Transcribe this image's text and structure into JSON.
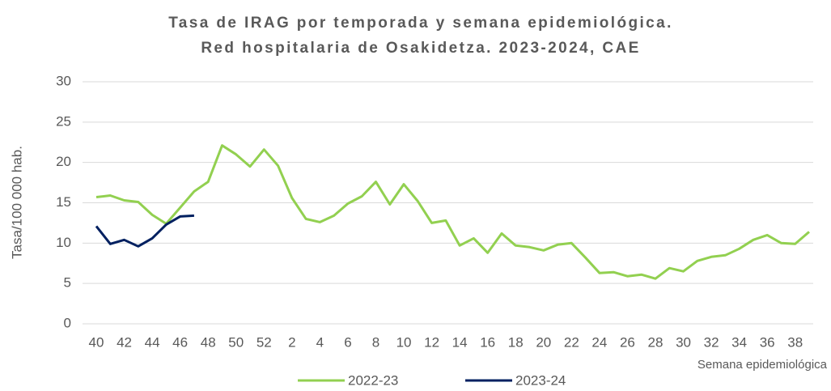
{
  "chart_data": {
    "type": "line",
    "title": [
      "Tasa de IRAG por temporada y semana epidemiológica.",
      "Red hospitalaria de Osakidetza. 2023-2024, CAE"
    ],
    "y_label": "Tasa/100 000 hab.",
    "x_label": "Semana epidemiológica",
    "categories": [
      "40",
      null,
      "42",
      null,
      "44",
      null,
      "46",
      null,
      "48",
      null,
      "50",
      null,
      "52",
      null,
      "2",
      null,
      "4",
      null,
      "6",
      null,
      "8",
      null,
      "10",
      null,
      "12",
      null,
      "14",
      null,
      "16",
      null,
      "18",
      null,
      "20",
      null,
      "22",
      null,
      "24",
      null,
      "26",
      null,
      "28",
      null,
      "30",
      null,
      "32",
      null,
      "34",
      null,
      "36",
      null,
      "38",
      null
    ],
    "series": [
      {
        "name": "2022-23",
        "color": "#92d050",
        "values": [
          15.7,
          15.9,
          15.3,
          15.1,
          13.5,
          12.4,
          14.4,
          16.4,
          17.6,
          22.1,
          21.0,
          19.5,
          21.6,
          19.6,
          15.6,
          13.0,
          12.6,
          13.4,
          14.9,
          15.8,
          17.6,
          14.8,
          17.3,
          15.2,
          12.5,
          12.8,
          9.7,
          10.6,
          8.8,
          11.2,
          9.7,
          9.5,
          9.1,
          9.8,
          10.0,
          8.2,
          6.3,
          6.4,
          5.9,
          6.1,
          5.6,
          6.9,
          6.5,
          7.8,
          8.3,
          8.5,
          9.3,
          10.4,
          11.0,
          10.0,
          9.9,
          11.4
        ]
      },
      {
        "name": "2023-24",
        "color": "#002060",
        "values": [
          12.1,
          9.9,
          10.4,
          9.6,
          10.6,
          12.3,
          13.3,
          13.4,
          null,
          null,
          null,
          null,
          null,
          null,
          null,
          null,
          null,
          null,
          null,
          null,
          null,
          null,
          null,
          null,
          null,
          null,
          null,
          null,
          null,
          null,
          null,
          null,
          null,
          null,
          null,
          null,
          null,
          null,
          null,
          null,
          null,
          null,
          null,
          null,
          null,
          null,
          null,
          null,
          null,
          null,
          null,
          null
        ]
      }
    ],
    "ylim": [
      0,
      30
    ],
    "yticks": [
      0,
      5,
      10,
      15,
      20,
      25,
      30
    ],
    "grid": true,
    "legend": "bottom"
  }
}
